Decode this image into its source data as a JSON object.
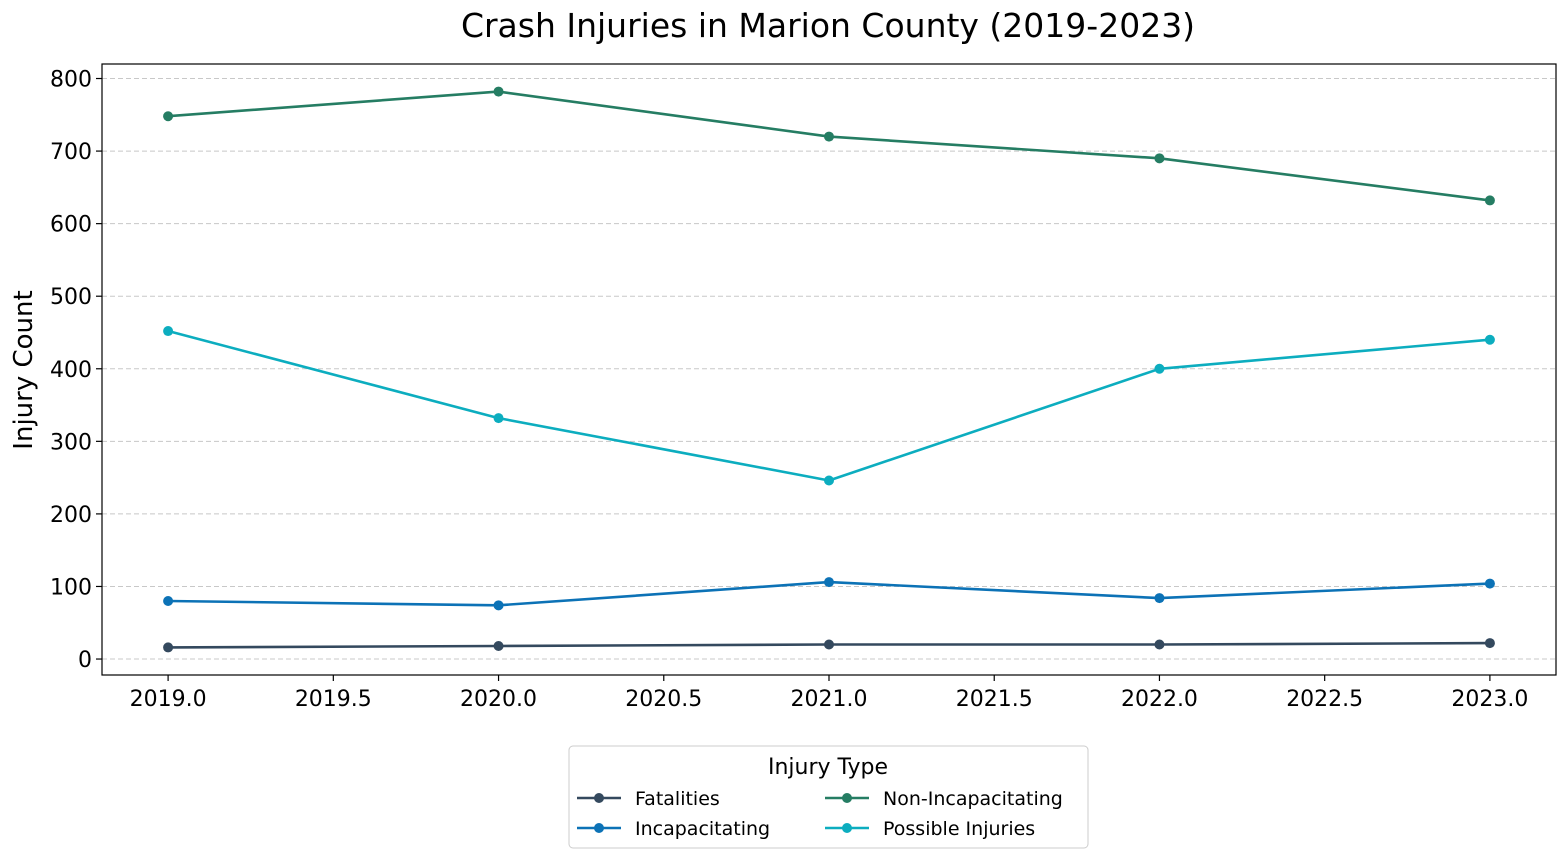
{
  "chart_data": {
    "type": "line",
    "title": "Crash Injuries in Marion County (2019-2023)",
    "xlabel": "",
    "ylabel": "Injury Count",
    "x": [
      2019,
      2020,
      2021,
      2022,
      2023
    ],
    "xlim": [
      2018.8,
      2023.2
    ],
    "ylim": [
      -22,
      820
    ],
    "x_ticks": [
      2019.0,
      2019.5,
      2020.0,
      2020.5,
      2021.0,
      2021.5,
      2022.0,
      2022.5,
      2023.0
    ],
    "x_tick_labels": [
      "2019.0",
      "2019.5",
      "2020.0",
      "2020.5",
      "2021.0",
      "2021.5",
      "2022.0",
      "2022.5",
      "2023.0"
    ],
    "y_ticks": [
      0,
      100,
      200,
      300,
      400,
      500,
      600,
      700,
      800
    ],
    "y_tick_labels": [
      "0",
      "100",
      "200",
      "300",
      "400",
      "500",
      "600",
      "700",
      "800"
    ],
    "grid": "horizontal dashed",
    "legend": {
      "title": "Injury Type",
      "placement": "bottom-center"
    },
    "series": [
      {
        "name": "Fatalities",
        "color": "#34495e",
        "values": [
          16,
          18,
          20,
          20,
          22
        ]
      },
      {
        "name": "Incapacitating",
        "color": "#0c72b6",
        "values": [
          80,
          74,
          106,
          84,
          104
        ]
      },
      {
        "name": "Non-Incapacitating",
        "color": "#257d63",
        "values": [
          748,
          782,
          720,
          690,
          632
        ]
      },
      {
        "name": "Possible Injuries",
        "color": "#0cadbf",
        "values": [
          452,
          332,
          246,
          400,
          440
        ]
      }
    ]
  }
}
